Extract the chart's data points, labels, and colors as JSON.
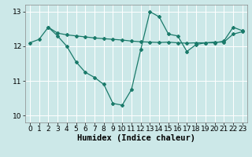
{
  "line1_x": [
    0,
    1,
    2,
    3,
    4,
    5,
    6,
    7,
    8,
    9,
    10,
    11,
    12,
    13,
    14,
    15,
    16,
    17,
    18,
    19,
    20,
    21,
    22,
    23
  ],
  "line1_y": [
    12.1,
    12.2,
    12.55,
    12.3,
    12.0,
    11.55,
    11.25,
    11.1,
    10.9,
    10.35,
    10.3,
    10.75,
    11.9,
    13.0,
    12.85,
    12.35,
    12.3,
    11.85,
    12.05,
    12.1,
    12.1,
    12.15,
    12.55,
    12.45
  ],
  "line2_x": [
    2,
    3,
    4,
    5,
    6,
    7,
    8,
    9,
    10,
    11,
    12,
    13,
    14,
    15,
    16,
    17,
    18,
    19,
    20,
    21,
    22,
    23
  ],
  "line2_y": [
    12.55,
    12.38,
    12.33,
    12.3,
    12.27,
    12.24,
    12.22,
    12.2,
    12.18,
    12.15,
    12.13,
    12.12,
    12.11,
    12.12,
    12.1,
    12.09,
    12.1,
    12.1,
    12.12,
    12.12,
    12.35,
    12.42
  ],
  "line_color": "#1a7a6a",
  "background_color": "#cce8e8",
  "grid_color": "#ffffff",
  "xlabel": "Humidex (Indice chaleur)",
  "ylim": [
    9.8,
    13.2
  ],
  "xlim": [
    -0.5,
    23.5
  ],
  "yticks": [
    10,
    11,
    12,
    13
  ],
  "xticks": [
    0,
    1,
    2,
    3,
    4,
    5,
    6,
    7,
    8,
    9,
    10,
    11,
    12,
    13,
    14,
    15,
    16,
    17,
    18,
    19,
    20,
    21,
    22,
    23
  ],
  "marker": "D",
  "markersize": 2.0,
  "linewidth": 0.9,
  "xlabel_fontsize": 7.5,
  "tick_fontsize": 6.5
}
